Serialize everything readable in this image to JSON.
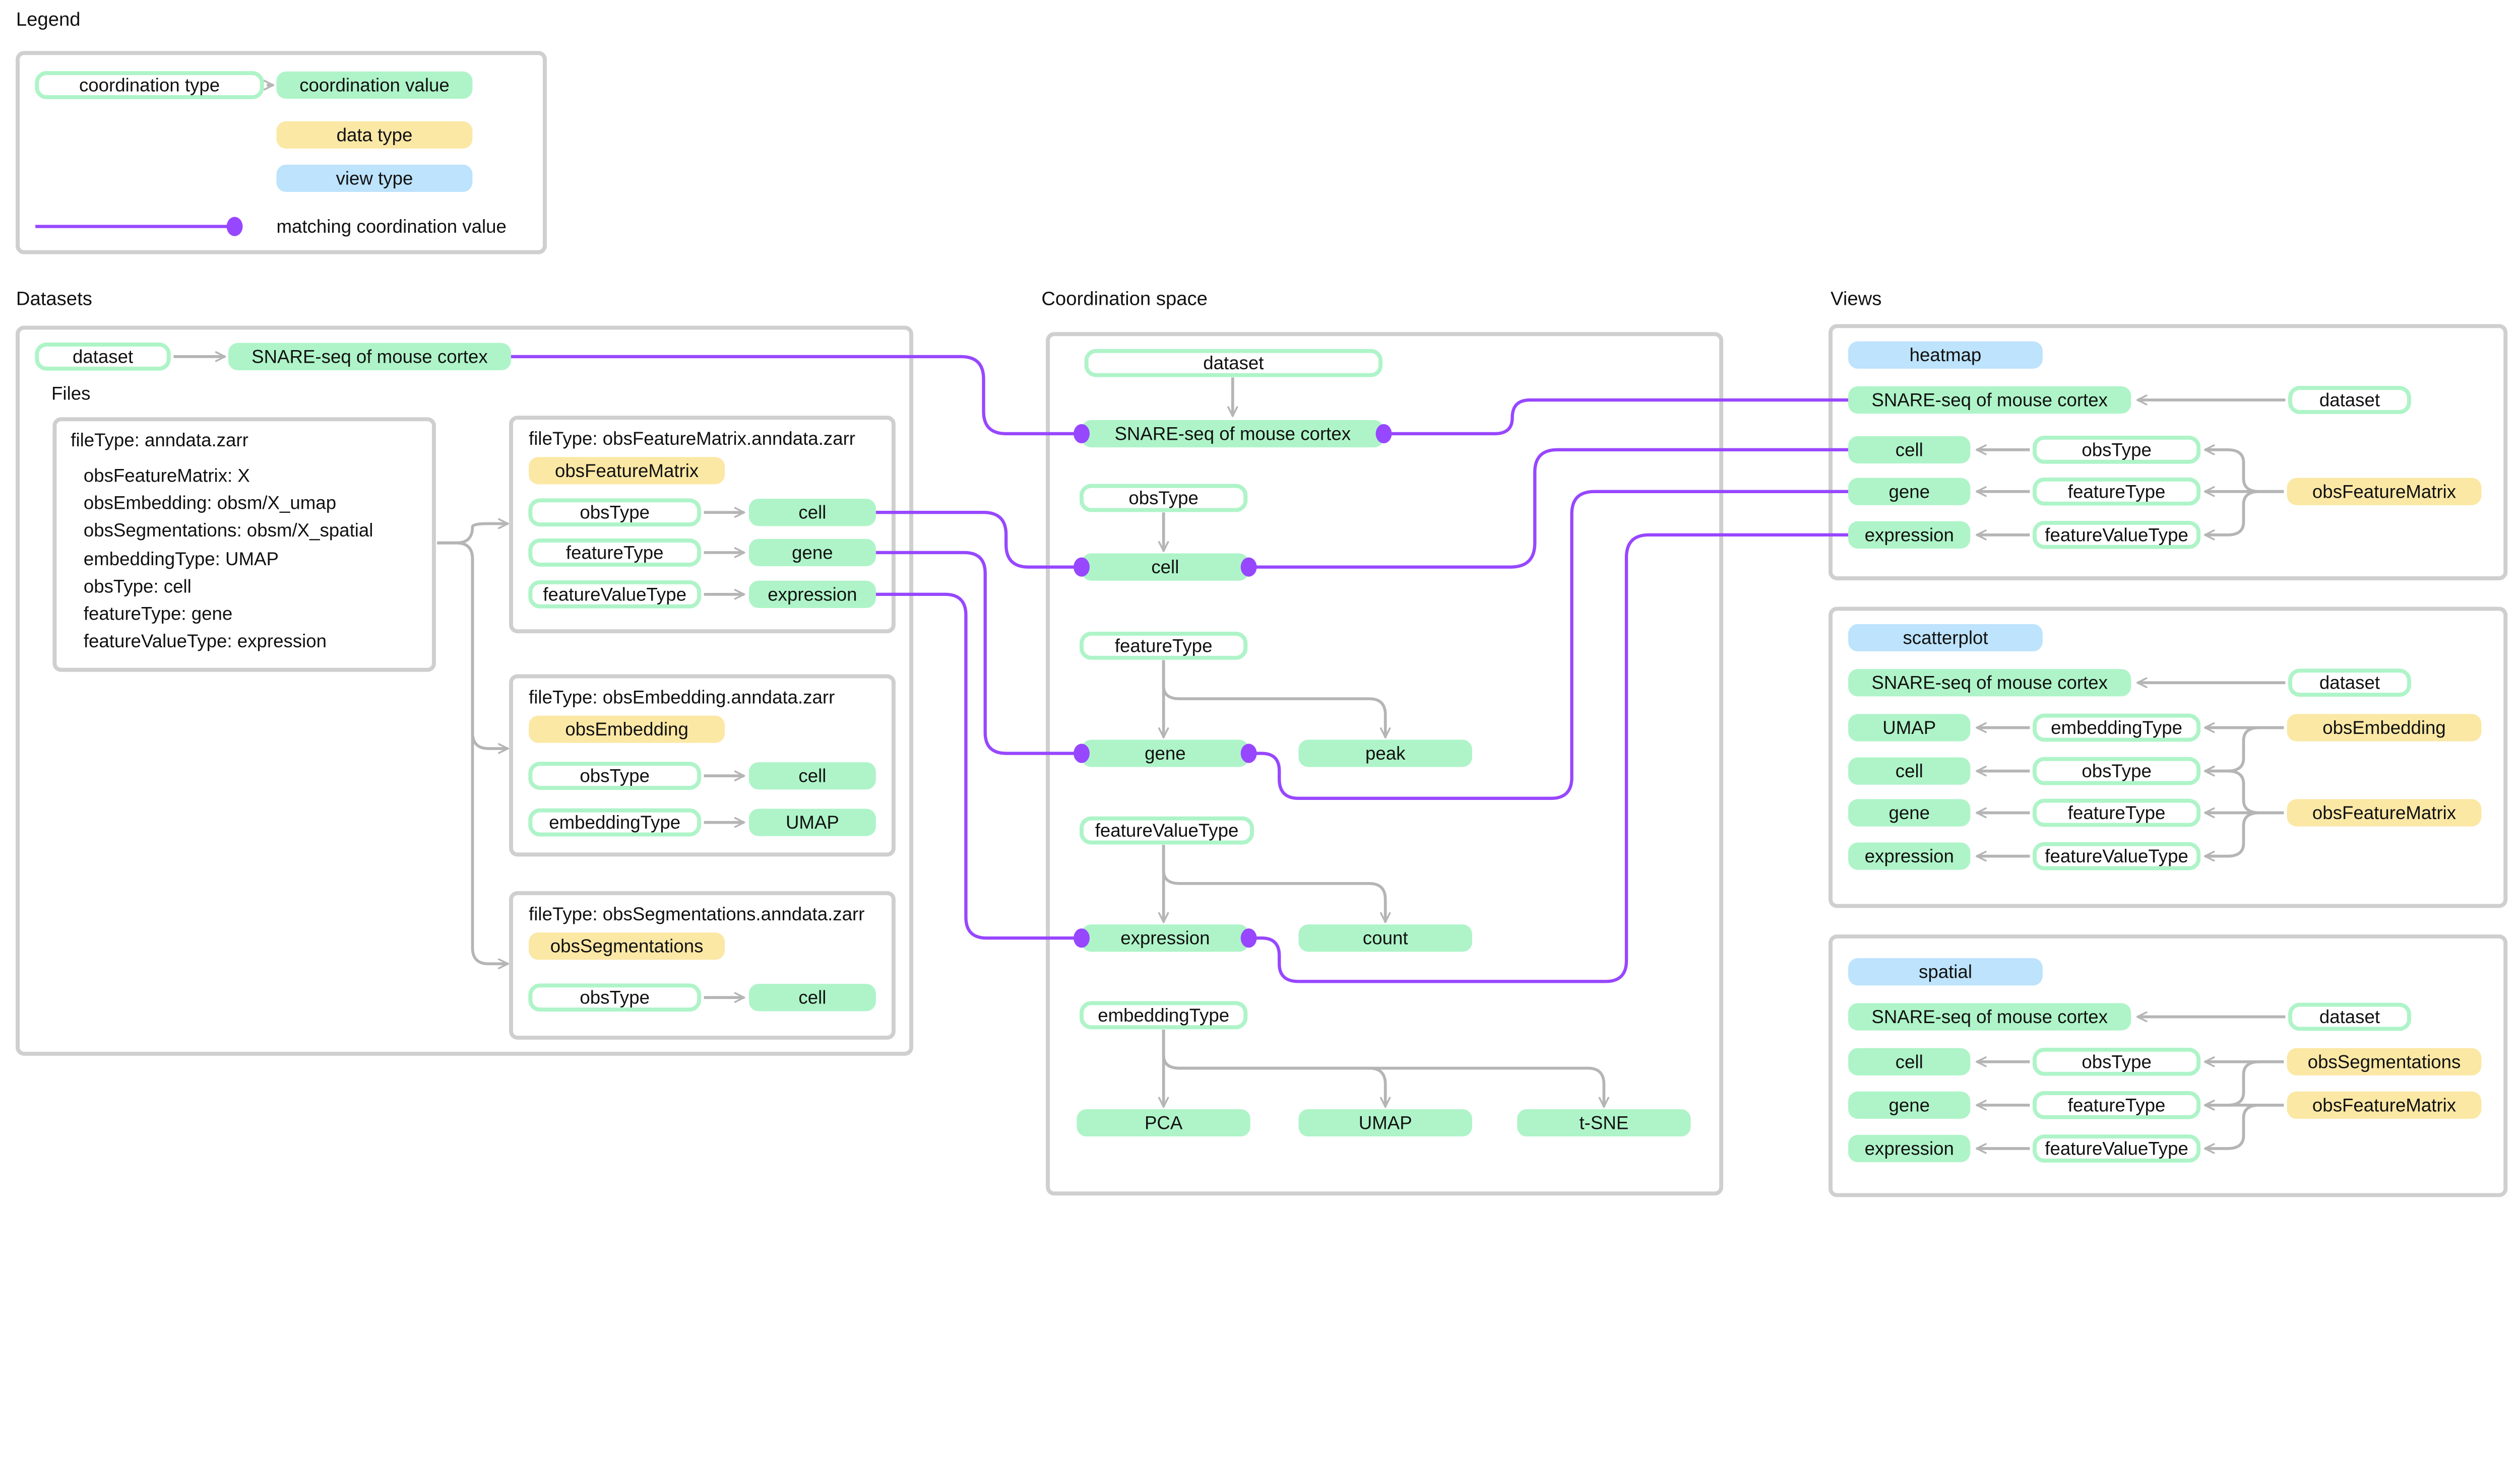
{
  "colors": {
    "coordination_value": "#aef4c8",
    "data_type": "#fbe8a5",
    "view_type": "#bde3fd",
    "matching_line": "#9747ff",
    "arrow": "#b5b5b5",
    "box_border": "#cfcfcf"
  },
  "legend": {
    "title": "Legend",
    "coordination_type": "coordination type",
    "coordination_value": "coordination value",
    "data_type": "data type",
    "view_type": "view type",
    "matching": "matching coordination value"
  },
  "datasets": {
    "title": "Datasets",
    "dataset_type": "dataset",
    "dataset_value": "SNARE-seq of mouse cortex",
    "files_label": "Files",
    "file_main": {
      "header": "fileType: anndata.zarr",
      "lines": [
        "obsFeatureMatrix: X",
        "obsEmbedding: obsm/X_umap",
        "obsSegmentations: obsm/X_spatial",
        "embeddingType: UMAP",
        "obsType: cell",
        "featureType: gene",
        "featureValueType: expression"
      ]
    },
    "files": [
      {
        "header": "fileType: obsFeatureMatrix.anndata.zarr",
        "data_type": "obsFeatureMatrix",
        "rows": [
          {
            "type": "obsType",
            "value": "cell"
          },
          {
            "type": "featureType",
            "value": "gene"
          },
          {
            "type": "featureValueType",
            "value": "expression"
          }
        ]
      },
      {
        "header": "fileType: obsEmbedding.anndata.zarr",
        "data_type": "obsEmbedding",
        "rows": [
          {
            "type": "obsType",
            "value": "cell"
          },
          {
            "type": "embeddingType",
            "value": "UMAP"
          }
        ]
      },
      {
        "header": "fileType: obsSegmentations.anndata.zarr",
        "data_type": "obsSegmentations",
        "rows": [
          {
            "type": "obsType",
            "value": "cell"
          }
        ]
      }
    ]
  },
  "coordination_space": {
    "title": "Coordination space",
    "groups": [
      {
        "type": "dataset",
        "values": [
          "SNARE-seq of mouse cortex"
        ]
      },
      {
        "type": "obsType",
        "values": [
          "cell"
        ]
      },
      {
        "type": "featureType",
        "values": [
          "gene",
          "peak"
        ]
      },
      {
        "type": "featureValueType",
        "values": [
          "expression",
          "count"
        ]
      },
      {
        "type": "embeddingType",
        "values": [
          "PCA",
          "UMAP",
          "t-SNE"
        ]
      }
    ]
  },
  "views": {
    "title": "Views",
    "items": [
      {
        "view_type": "heatmap",
        "dataset_value": "SNARE-seq of mouse cortex",
        "dataset_type": "dataset",
        "rows": [
          {
            "value": "cell",
            "type": "obsType"
          },
          {
            "value": "gene",
            "type": "featureType"
          },
          {
            "value": "expression",
            "type": "featureValueType"
          }
        ],
        "data_types": [
          "obsFeatureMatrix"
        ]
      },
      {
        "view_type": "scatterplot",
        "dataset_value": "SNARE-seq of mouse cortex",
        "dataset_type": "dataset",
        "rows": [
          {
            "value": "UMAP",
            "type": "embeddingType"
          },
          {
            "value": "cell",
            "type": "obsType"
          },
          {
            "value": "gene",
            "type": "featureType"
          },
          {
            "value": "expression",
            "type": "featureValueType"
          }
        ],
        "data_types": [
          "obsEmbedding",
          "obsFeatureMatrix"
        ]
      },
      {
        "view_type": "spatial",
        "dataset_value": "SNARE-seq of mouse cortex",
        "dataset_type": "dataset",
        "rows": [
          {
            "value": "cell",
            "type": "obsType"
          },
          {
            "value": "gene",
            "type": "featureType"
          },
          {
            "value": "expression",
            "type": "featureValueType"
          }
        ],
        "data_types": [
          "obsSegmentations",
          "obsFeatureMatrix"
        ]
      }
    ]
  }
}
